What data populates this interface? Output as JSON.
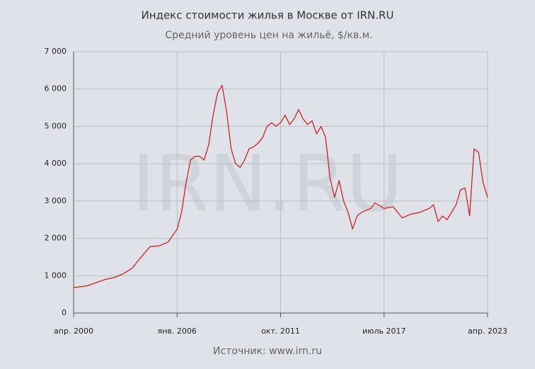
{
  "chart_data": {
    "type": "line",
    "title": "Индекс стоимости жилья в Москве от IRN.RU",
    "subtitle": "Средний уровень цен на жильё, $/кв.м.",
    "source": "Источник: www.irn.ru",
    "watermark": "IRN.RU",
    "x": [
      "2000-04",
      "2001-01",
      "2002-01",
      "2002-07",
      "2003-01",
      "2003-07",
      "2004-01",
      "2004-07",
      "2005-01",
      "2005-07",
      "2006-01",
      "2006-04",
      "2006-07",
      "2006-10",
      "2007-01",
      "2007-04",
      "2007-07",
      "2007-10",
      "2008-01",
      "2008-04",
      "2008-07",
      "2008-10",
      "2009-01",
      "2009-04",
      "2009-07",
      "2009-10",
      "2010-01",
      "2010-04",
      "2010-07",
      "2010-10",
      "2011-01",
      "2011-04",
      "2011-07",
      "2011-10",
      "2012-01",
      "2012-04",
      "2012-07",
      "2012-10",
      "2013-01",
      "2013-04",
      "2013-07",
      "2013-10",
      "2014-01",
      "2014-04",
      "2014-07",
      "2014-10",
      "2015-01",
      "2015-04",
      "2015-07",
      "2015-10",
      "2016-01",
      "2016-04",
      "2016-07",
      "2016-10",
      "2017-01",
      "2017-07",
      "2018-01",
      "2018-07",
      "2019-01",
      "2019-07",
      "2020-01",
      "2020-04",
      "2020-07",
      "2020-10",
      "2021-01",
      "2021-07",
      "2021-10",
      "2022-01",
      "2022-04",
      "2022-07",
      "2022-10",
      "2023-01",
      "2023-04"
    ],
    "series": [
      {
        "color": "#d42020",
        "values": [
          680,
          730,
          900,
          950,
          1050,
          1200,
          1500,
          1780,
          1800,
          1900,
          2250,
          2700,
          3500,
          4100,
          4200,
          4200,
          4100,
          4500,
          5300,
          5900,
          6100,
          5400,
          4400,
          4000,
          3900,
          4100,
          4400,
          4450,
          4550,
          4700,
          5000,
          5100,
          5000,
          5100,
          5300,
          5050,
          5200,
          5450,
          5200,
          5050,
          5150,
          4800,
          5000,
          4700,
          3600,
          3100,
          3550,
          3000,
          2700,
          2250,
          2600,
          2700,
          2750,
          2800,
          2950,
          2800,
          2850,
          2550,
          2650,
          2700,
          2800,
          2900,
          2450,
          2600,
          2500,
          2900,
          3300,
          3350,
          2600,
          4400,
          4300,
          3500,
          3100
        ]
      }
    ],
    "xlim": [
      "2000-04",
      "2023-04"
    ],
    "xticks": [
      {
        "value": "2000-04",
        "label": "апр. 2000"
      },
      {
        "value": "2006-01",
        "label": "янв. 2006"
      },
      {
        "value": "2011-10",
        "label": "окт. 2011"
      },
      {
        "value": "2017-07",
        "label": "июль 2017"
      },
      {
        "value": "2023-04",
        "label": "апр. 2023"
      }
    ],
    "ylim": [
      0,
      7000
    ],
    "yticks": [
      0,
      {
        "value": 1000,
        "label": "1 000"
      },
      {
        "value": 2000,
        "label": "2 000"
      },
      {
        "value": 3000,
        "label": "3 000"
      },
      {
        "value": 4000,
        "label": "4 000"
      },
      {
        "value": 5000,
        "label": "5 000"
      },
      {
        "value": 6000,
        "label": "6 000"
      },
      {
        "value": 7000,
        "label": "7 000"
      }
    ],
    "grid": true
  }
}
